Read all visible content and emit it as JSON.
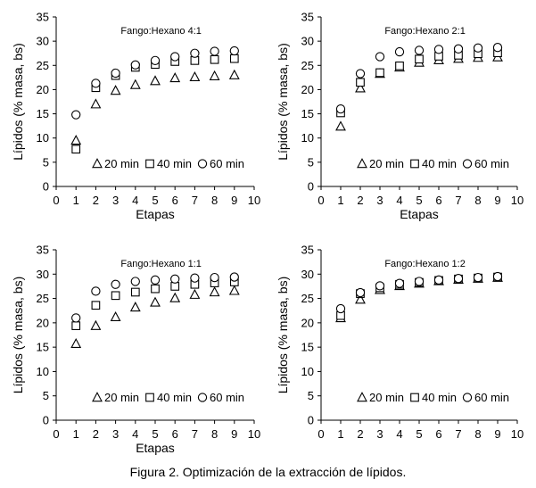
{
  "caption": "Figura 2. Optimización de la extracción de lípidos.",
  "chart_data": [
    {
      "type": "scatter",
      "title": "Fango:Hexano 4:1",
      "xlabel": "Etapas",
      "ylabel": "Lípidos (% masa, bs)",
      "xlim": [
        0,
        10
      ],
      "ylim": [
        0,
        35
      ],
      "xticks": [
        0,
        1,
        2,
        3,
        4,
        5,
        6,
        7,
        8,
        9,
        10
      ],
      "yticks": [
        0,
        5,
        10,
        15,
        20,
        25,
        30,
        35
      ],
      "grid": false,
      "legend_position": "bottom-right",
      "x": [
        1,
        2,
        3,
        4,
        5,
        6,
        7,
        8,
        9
      ],
      "series": [
        {
          "name": "20 min",
          "marker": "triangle",
          "values": [
            9.5,
            17.0,
            19.8,
            21.0,
            21.8,
            22.4,
            22.6,
            22.8,
            23.0
          ]
        },
        {
          "name": "40 min",
          "marker": "square",
          "values": [
            7.7,
            20.4,
            22.9,
            24.6,
            25.2,
            25.8,
            26.0,
            26.2,
            26.4
          ]
        },
        {
          "name": "60 min",
          "marker": "circle",
          "values": [
            14.8,
            21.3,
            23.4,
            25.1,
            26.0,
            26.8,
            27.5,
            27.9,
            28.0
          ]
        }
      ]
    },
    {
      "type": "scatter",
      "title": "Fango:Hexano 2:1",
      "xlabel": "Etapas",
      "ylabel": "Lípidos (% masa, bs)",
      "xlim": [
        0,
        10
      ],
      "ylim": [
        0,
        35
      ],
      "xticks": [
        0,
        1,
        2,
        3,
        4,
        5,
        6,
        7,
        8,
        9,
        10
      ],
      "yticks": [
        0,
        5,
        10,
        15,
        20,
        25,
        30,
        35
      ],
      "grid": false,
      "legend_position": "bottom-right",
      "x": [
        1,
        2,
        3,
        4,
        5,
        6,
        7,
        8,
        9
      ],
      "series": [
        {
          "name": "20 min",
          "marker": "triangle",
          "values": [
            12.4,
            20.3,
            23.3,
            24.6,
            25.6,
            26.1,
            26.4,
            26.6,
            26.7
          ]
        },
        {
          "name": "40 min",
          "marker": "square",
          "values": [
            15.2,
            21.5,
            23.5,
            24.9,
            26.3,
            26.9,
            27.1,
            27.4,
            27.6
          ]
        },
        {
          "name": "60 min",
          "marker": "circle",
          "values": [
            16.0,
            23.3,
            26.8,
            27.8,
            28.1,
            28.3,
            28.4,
            28.6,
            28.7
          ]
        }
      ]
    },
    {
      "type": "scatter",
      "title": "Fango:Hexano 1:1",
      "xlabel": "Etapas",
      "ylabel": "Lípidos (% masa, bs)",
      "xlim": [
        0,
        10
      ],
      "ylim": [
        0,
        35
      ],
      "xticks": [
        0,
        1,
        2,
        3,
        4,
        5,
        6,
        7,
        8,
        9,
        10
      ],
      "yticks": [
        0,
        5,
        10,
        15,
        20,
        25,
        30,
        35
      ],
      "grid": false,
      "legend_position": "bottom-right",
      "x": [
        1,
        2,
        3,
        4,
        5,
        6,
        7,
        8,
        9
      ],
      "series": [
        {
          "name": "20 min",
          "marker": "triangle",
          "values": [
            15.7,
            19.4,
            21.2,
            23.2,
            24.2,
            25.1,
            25.8,
            26.3,
            26.6
          ]
        },
        {
          "name": "40 min",
          "marker": "square",
          "values": [
            19.4,
            23.6,
            25.6,
            26.3,
            27.0,
            27.5,
            27.9,
            28.2,
            28.4
          ]
        },
        {
          "name": "60 min",
          "marker": "circle",
          "values": [
            21.0,
            26.5,
            27.9,
            28.5,
            28.8,
            29.0,
            29.2,
            29.3,
            29.4
          ]
        }
      ]
    },
    {
      "type": "scatter",
      "title": "Fango:Hexano 1:2",
      "xlabel": "",
      "ylabel": "Lípidos (% masa, bs)",
      "xlim": [
        0,
        10
      ],
      "ylim": [
        0,
        35
      ],
      "xticks": [
        0,
        1,
        2,
        3,
        4,
        5,
        6,
        7,
        8,
        9,
        10
      ],
      "yticks": [
        0,
        5,
        10,
        15,
        20,
        25,
        30,
        35
      ],
      "grid": false,
      "legend_position": "bottom-right",
      "x": [
        1,
        2,
        3,
        4,
        5,
        6,
        7,
        8,
        9
      ],
      "series": [
        {
          "name": "20 min",
          "marker": "triangle",
          "values": [
            21.0,
            24.8,
            26.8,
            27.6,
            28.1,
            28.6,
            28.9,
            29.1,
            29.3
          ]
        },
        {
          "name": "40 min",
          "marker": "square",
          "values": [
            21.5,
            26.0,
            27.2,
            27.9,
            28.3,
            28.7,
            29.0,
            29.2,
            29.4
          ]
        },
        {
          "name": "60 min",
          "marker": "circle",
          "values": [
            22.9,
            26.2,
            27.6,
            28.1,
            28.5,
            28.8,
            29.1,
            29.3,
            29.5
          ]
        }
      ]
    }
  ]
}
